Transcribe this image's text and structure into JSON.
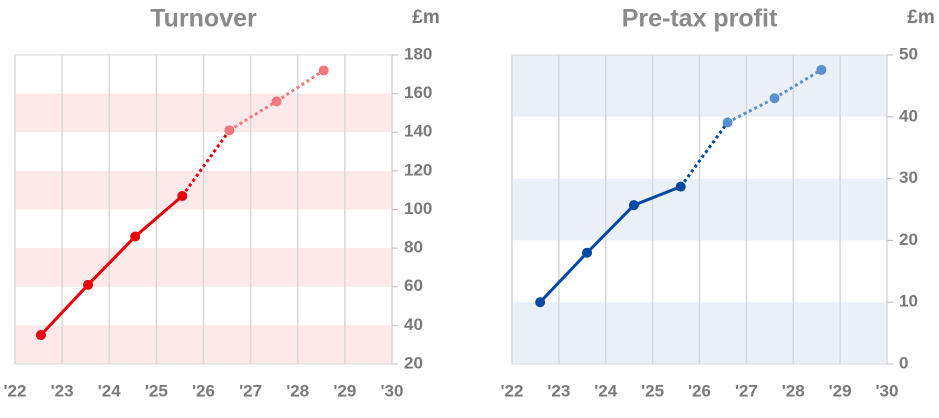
{
  "chart_data": [
    {
      "type": "line",
      "title": "Turnover",
      "unit": "£m",
      "x": [
        2022.55,
        2023.55,
        2024.55,
        2025.55,
        2026.55,
        2027.55,
        2028.55
      ],
      "series": [
        {
          "values": [
            35,
            61,
            86,
            107,
            141,
            156,
            172
          ],
          "point_colors": [
            "#e8000b",
            "#e8000b",
            "#e8000b",
            "#e8000b",
            "#f07a7d",
            "#f07a7d",
            "#f07a7d"
          ],
          "segment_colors": [
            "#e8000b",
            "#e8000b",
            "#e8000b",
            "#e8000b",
            "#f07a7d",
            "#f07a7d"
          ],
          "segment_styles": [
            "solid",
            "solid",
            "solid",
            "dotted",
            "dotted",
            "dotted"
          ]
        }
      ],
      "xlim": [
        2022,
        2030
      ],
      "xticks": [
        {
          "value": 2022,
          "label": "'22"
        },
        {
          "value": 2023,
          "label": "'23"
        },
        {
          "value": 2024,
          "label": "'24"
        },
        {
          "value": 2025,
          "label": "'25"
        },
        {
          "value": 2026,
          "label": "'26"
        },
        {
          "value": 2027,
          "label": "'27"
        },
        {
          "value": 2028,
          "label": "'28"
        },
        {
          "value": 2029,
          "label": "'29"
        },
        {
          "value": 2030,
          "label": "'30"
        }
      ],
      "ylim": [
        20,
        180
      ],
      "yticks": [
        20,
        40,
        60,
        80,
        100,
        120,
        140,
        160,
        180
      ],
      "grid": "x",
      "band_color": "#fde9e9"
    },
    {
      "type": "line",
      "title": "Pre-tax profit",
      "unit": "£m",
      "x": [
        2022.6,
        2023.6,
        2024.6,
        2025.6,
        2026.6,
        2027.6,
        2028.6
      ],
      "series": [
        {
          "values": [
            10,
            18,
            25.7,
            28.7,
            39.1,
            43,
            47.6
          ],
          "point_colors": [
            "#0049a3",
            "#0049a3",
            "#0049a3",
            "#0049a3",
            "#5a8fd0",
            "#5a8fd0",
            "#5a8fd0"
          ],
          "segment_colors": [
            "#0049a3",
            "#0049a3",
            "#0049a3",
            "#0049a3",
            "#5a8fd0",
            "#5a8fd0"
          ],
          "segment_styles": [
            "solid",
            "solid",
            "solid",
            "dotted",
            "dotted",
            "dotted"
          ]
        }
      ],
      "xlim": [
        2022,
        2030
      ],
      "xticks": [
        {
          "value": 2022,
          "label": "'22"
        },
        {
          "value": 2023,
          "label": "'23"
        },
        {
          "value": 2024,
          "label": "'24"
        },
        {
          "value": 2025,
          "label": "'25"
        },
        {
          "value": 2026,
          "label": "'26"
        },
        {
          "value": 2027,
          "label": "'27"
        },
        {
          "value": 2028,
          "label": "'28"
        },
        {
          "value": 2029,
          "label": "'29"
        },
        {
          "value": 2030,
          "label": "'30"
        }
      ],
      "ylim": [
        0,
        50
      ],
      "yticks": [
        0,
        10,
        20,
        30,
        40,
        50
      ],
      "grid": "x",
      "band_color": "#ebf0f8"
    }
  ]
}
